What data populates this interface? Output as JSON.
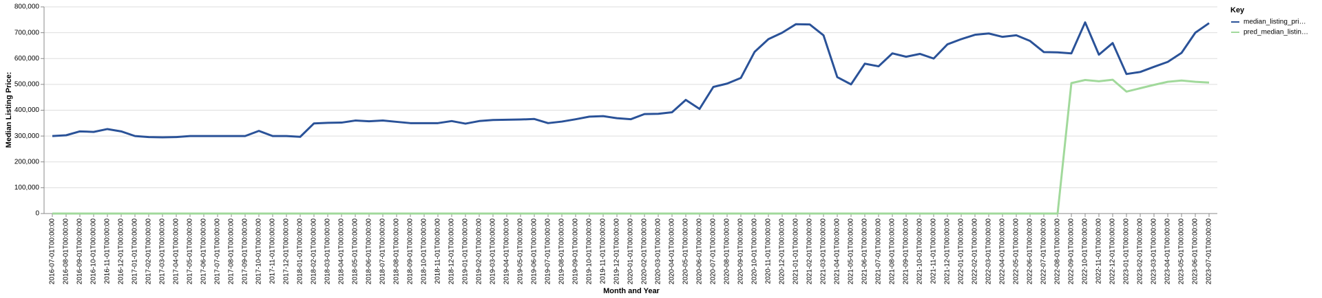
{
  "chart_data": {
    "type": "line",
    "x_label": "Month and Year",
    "y_label": "Median Listing Price:",
    "legend_title": "Key",
    "legend_position": "right",
    "grid": true,
    "categories": [
      "2016-07-01T00:00:00",
      "2016-08-01T00:00:00",
      "2016-09-01T00:00:00",
      "2016-10-01T00:00:00",
      "2016-11-01T00:00:00",
      "2016-12-01T00:00:00",
      "2017-01-01T00:00:00",
      "2017-02-01T00:00:00",
      "2017-03-01T00:00:00",
      "2017-04-01T00:00:00",
      "2017-05-01T00:00:00",
      "2017-06-01T00:00:00",
      "2017-07-01T00:00:00",
      "2017-08-01T00:00:00",
      "2017-09-01T00:00:00",
      "2017-10-01T00:00:00",
      "2017-11-01T00:00:00",
      "2017-12-01T00:00:00",
      "2018-01-01T00:00:00",
      "2018-02-01T00:00:00",
      "2018-03-01T00:00:00",
      "2018-04-01T00:00:00",
      "2018-05-01T00:00:00",
      "2018-06-01T00:00:00",
      "2018-07-01T00:00:00",
      "2018-08-01T00:00:00",
      "2018-09-01T00:00:00",
      "2018-10-01T00:00:00",
      "2018-11-01T00:00:00",
      "2018-12-01T00:00:00",
      "2019-01-01T00:00:00",
      "2019-02-01T00:00:00",
      "2019-03-01T00:00:00",
      "2019-04-01T00:00:00",
      "2019-05-01T00:00:00",
      "2019-06-01T00:00:00",
      "2019-07-01T00:00:00",
      "2019-08-01T00:00:00",
      "2019-09-01T00:00:00",
      "2019-10-01T00:00:00",
      "2019-11-01T00:00:00",
      "2019-12-01T00:00:00",
      "2020-01-01T00:00:00",
      "2020-02-01T00:00:00",
      "2020-03-01T00:00:00",
      "2020-04-01T00:00:00",
      "2020-05-01T00:00:00",
      "2020-06-01T00:00:00",
      "2020-07-01T00:00:00",
      "2020-08-01T00:00:00",
      "2020-09-01T00:00:00",
      "2020-10-01T00:00:00",
      "2020-11-01T00:00:00",
      "2020-12-01T00:00:00",
      "2021-01-01T00:00:00",
      "2021-02-01T00:00:00",
      "2021-03-01T00:00:00",
      "2021-04-01T00:00:00",
      "2021-05-01T00:00:00",
      "2021-06-01T00:00:00",
      "2021-07-01T00:00:00",
      "2021-08-01T00:00:00",
      "2021-09-01T00:00:00",
      "2021-10-01T00:00:00",
      "2021-11-01T00:00:00",
      "2021-12-01T00:00:00",
      "2022-01-01T00:00:00",
      "2022-02-01T00:00:00",
      "2022-03-01T00:00:00",
      "2022-04-01T00:00:00",
      "2022-05-01T00:00:00",
      "2022-06-01T00:00:00",
      "2022-07-01T00:00:00",
      "2022-08-01T00:00:00",
      "2022-09-01T00:00:00",
      "2022-10-01T00:00:00",
      "2022-11-01T00:00:00",
      "2022-12-01T00:00:00",
      "2023-01-01T00:00:00",
      "2023-02-01T00:00:00",
      "2023-03-01T00:00:00",
      "2023-04-01T00:00:00",
      "2023-05-01T00:00:00",
      "2023-06-01T00:00:00",
      "2023-07-01T00:00:00"
    ],
    "series": [
      {
        "name": "median_listing_pri…",
        "color": "#2a5298",
        "values": [
          300000,
          303000,
          318000,
          316000,
          327000,
          318000,
          300000,
          296000,
          295000,
          296000,
          300000,
          300000,
          300000,
          300000,
          300000,
          320000,
          300000,
          300000,
          297000,
          349000,
          351000,
          352000,
          360000,
          357000,
          360000,
          355000,
          350000,
          350000,
          350000,
          358000,
          348000,
          358000,
          362000,
          363000,
          364000,
          366000,
          350000,
          356000,
          365000,
          375000,
          377000,
          369000,
          365000,
          385000,
          386000,
          392000,
          440000,
          405000,
          490000,
          503000,
          525000,
          626000,
          675000,
          700000,
          733000,
          732000,
          690000,
          528000,
          500000,
          580000,
          570000,
          620000,
          607000,
          618000,
          600000,
          655000,
          675000,
          692000,
          697000,
          684000,
          690000,
          668000,
          625000,
          624000,
          620000,
          740000,
          615000,
          660000,
          540000,
          548000,
          568000,
          587000,
          622000,
          700000,
          737000
        ]
      },
      {
        "name": "pred_median_listin…",
        "color": "#a1d99b",
        "values": [
          0,
          0,
          0,
          0,
          0,
          0,
          0,
          0,
          0,
          0,
          0,
          0,
          0,
          0,
          0,
          0,
          0,
          0,
          0,
          0,
          0,
          0,
          0,
          0,
          0,
          0,
          0,
          0,
          0,
          0,
          0,
          0,
          0,
          0,
          0,
          0,
          0,
          0,
          0,
          0,
          0,
          0,
          0,
          0,
          0,
          0,
          0,
          0,
          0,
          0,
          0,
          0,
          0,
          0,
          0,
          0,
          0,
          0,
          0,
          0,
          0,
          0,
          0,
          0,
          0,
          0,
          0,
          0,
          0,
          0,
          0,
          0,
          0,
          0,
          505000,
          517000,
          512000,
          518000,
          472000,
          485000,
          498000,
          510000,
          515000,
          510000,
          507000
        ]
      }
    ],
    "ylim": [
      0,
      800000
    ],
    "yticks": [
      {
        "value": 0,
        "label": "0"
      },
      {
        "value": 100000,
        "label": "100,000"
      },
      {
        "value": 200000,
        "label": "200,000"
      },
      {
        "value": 300000,
        "label": "300,000"
      },
      {
        "value": 400000,
        "label": "400,000"
      },
      {
        "value": 500000,
        "label": "500,000"
      },
      {
        "value": 600000,
        "label": "600,000"
      },
      {
        "value": 700000,
        "label": "700,000"
      },
      {
        "value": 800000,
        "label": "800,000"
      }
    ]
  }
}
